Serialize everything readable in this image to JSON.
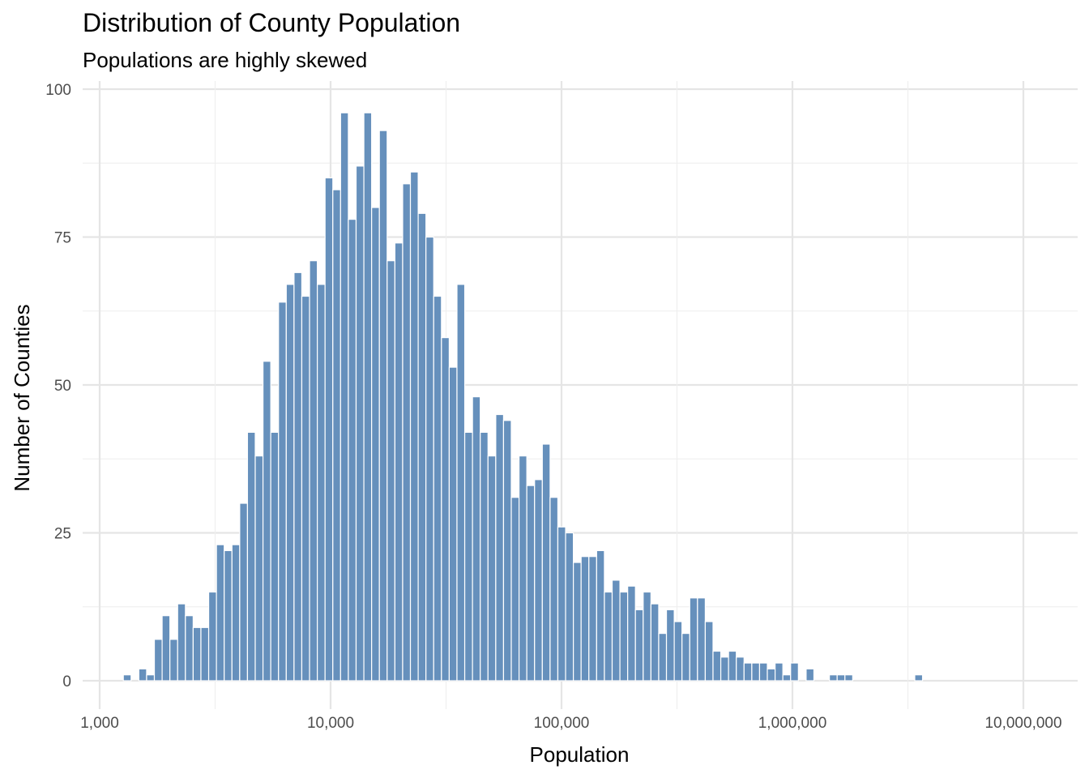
{
  "chart_data": {
    "type": "bar",
    "title": "Distribution of County Population",
    "subtitle": "Populations are highly skewed",
    "xlabel": "Population",
    "ylabel": "Number of Counties",
    "x_scale": "log10",
    "xlim": [
      1000,
      12000000
    ],
    "ylim": [
      0,
      100
    ],
    "x_ticks": [
      1000,
      10000,
      100000,
      1000000,
      10000000
    ],
    "x_tick_labels": [
      "1,000",
      "10,000",
      "100,000",
      "1,000,000",
      "10,000,000"
    ],
    "y_ticks": [
      0,
      25,
      50,
      75,
      100
    ],
    "y_tick_labels": [
      "0",
      "25",
      "50",
      "75",
      "100"
    ],
    "grid": true,
    "bar_color": "#6690bc",
    "bins": {
      "log10_start": 3.1025,
      "log10_width": 0.0336,
      "counts": [
        1,
        0,
        2,
        1,
        7,
        11,
        7,
        13,
        11,
        9,
        9,
        15,
        23,
        22,
        23,
        30,
        42,
        38,
        54,
        42,
        64,
        67,
        69,
        65,
        71,
        67,
        85,
        83,
        96,
        78,
        87,
        96,
        80,
        93,
        71,
        74,
        84,
        86,
        79,
        75,
        65,
        58,
        53,
        67,
        42,
        48,
        42,
        38,
        45,
        44,
        31,
        38,
        33,
        34,
        40,
        31,
        26,
        25,
        20,
        21,
        21,
        22,
        15,
        17,
        15,
        16,
        12,
        15,
        13,
        8,
        12,
        10,
        8,
        14,
        14,
        10,
        5,
        4,
        5,
        4,
        3,
        3,
        3,
        2,
        3,
        1,
        3,
        0,
        2,
        0,
        0,
        1,
        1,
        1,
        0,
        0,
        0,
        0,
        0,
        0,
        0,
        0,
        1
      ]
    }
  }
}
